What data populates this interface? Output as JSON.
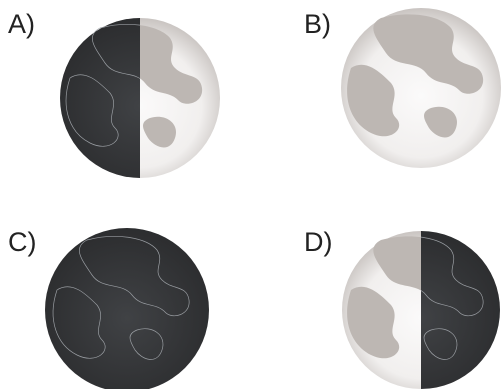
{
  "options": [
    {
      "label": "A)"
    },
    {
      "label": "B)"
    },
    {
      "label": "C)"
    },
    {
      "label": "D)"
    }
  ]
}
